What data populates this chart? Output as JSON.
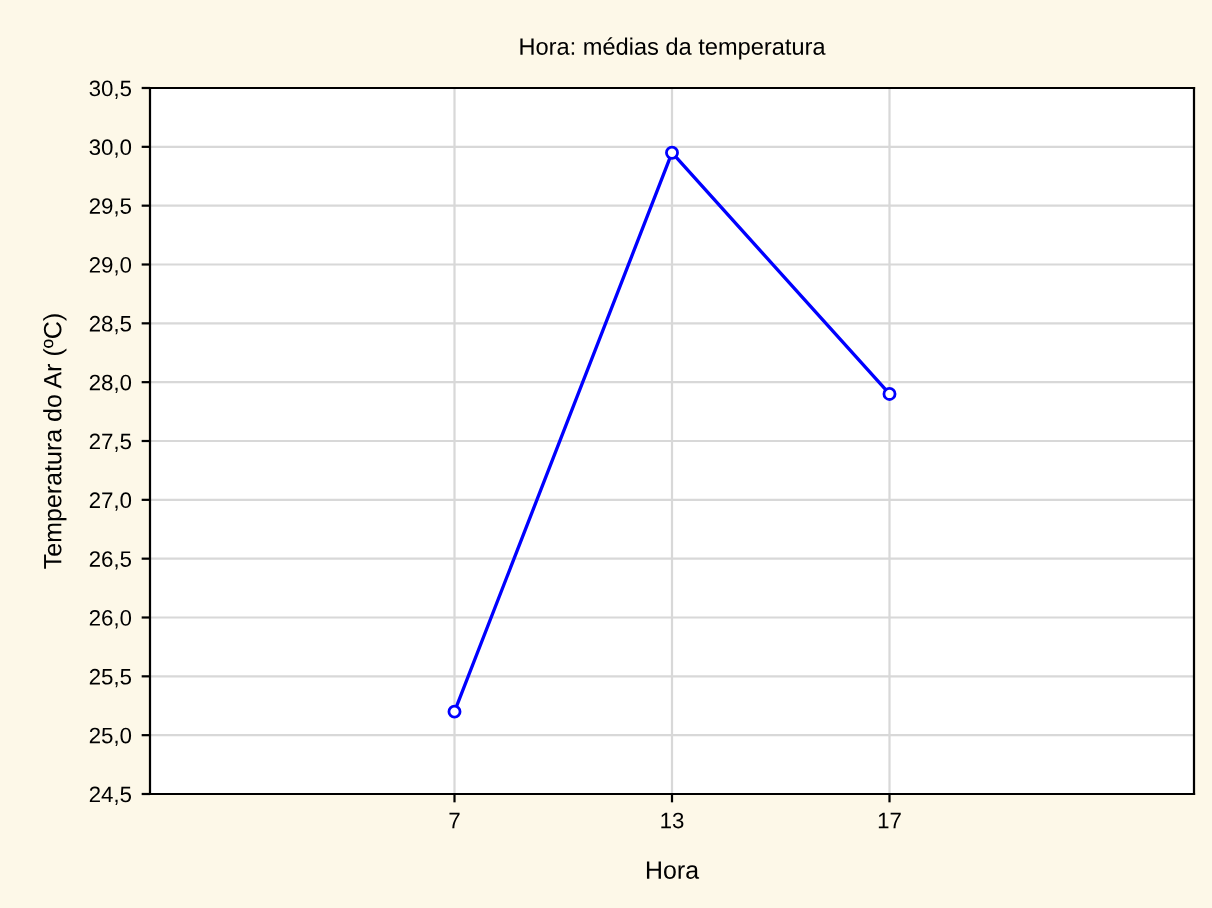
{
  "chart_data": {
    "type": "line",
    "title": "Hora: médias da temperatura",
    "xlabel": "Hora",
    "ylabel": "Temperatura do Ar (ºC)",
    "categories": [
      "7",
      "13",
      "17"
    ],
    "series": [
      {
        "color": "#0000ff",
        "values": [
          25.2,
          29.95,
          27.9
        ]
      }
    ],
    "ylim": [
      24.5,
      30.5
    ],
    "yticks": [
      {
        "value": 24.5,
        "label": "24,5"
      },
      {
        "value": 25.0,
        "label": "25,0"
      },
      {
        "value": 25.5,
        "label": "25,5"
      },
      {
        "value": 26.0,
        "label": "26,0"
      },
      {
        "value": 26.5,
        "label": "26,5"
      },
      {
        "value": 27.0,
        "label": "27,0"
      },
      {
        "value": 27.5,
        "label": "27,5"
      },
      {
        "value": 28.0,
        "label": "28,0"
      },
      {
        "value": 28.5,
        "label": "28,5"
      },
      {
        "value": 29.0,
        "label": "29,0"
      },
      {
        "value": 29.5,
        "label": "29,5"
      },
      {
        "value": 30.0,
        "label": "30,0"
      },
      {
        "value": 30.5,
        "label": "30,5"
      }
    ],
    "grid": true,
    "marker": "circle",
    "line_style": "solid"
  }
}
